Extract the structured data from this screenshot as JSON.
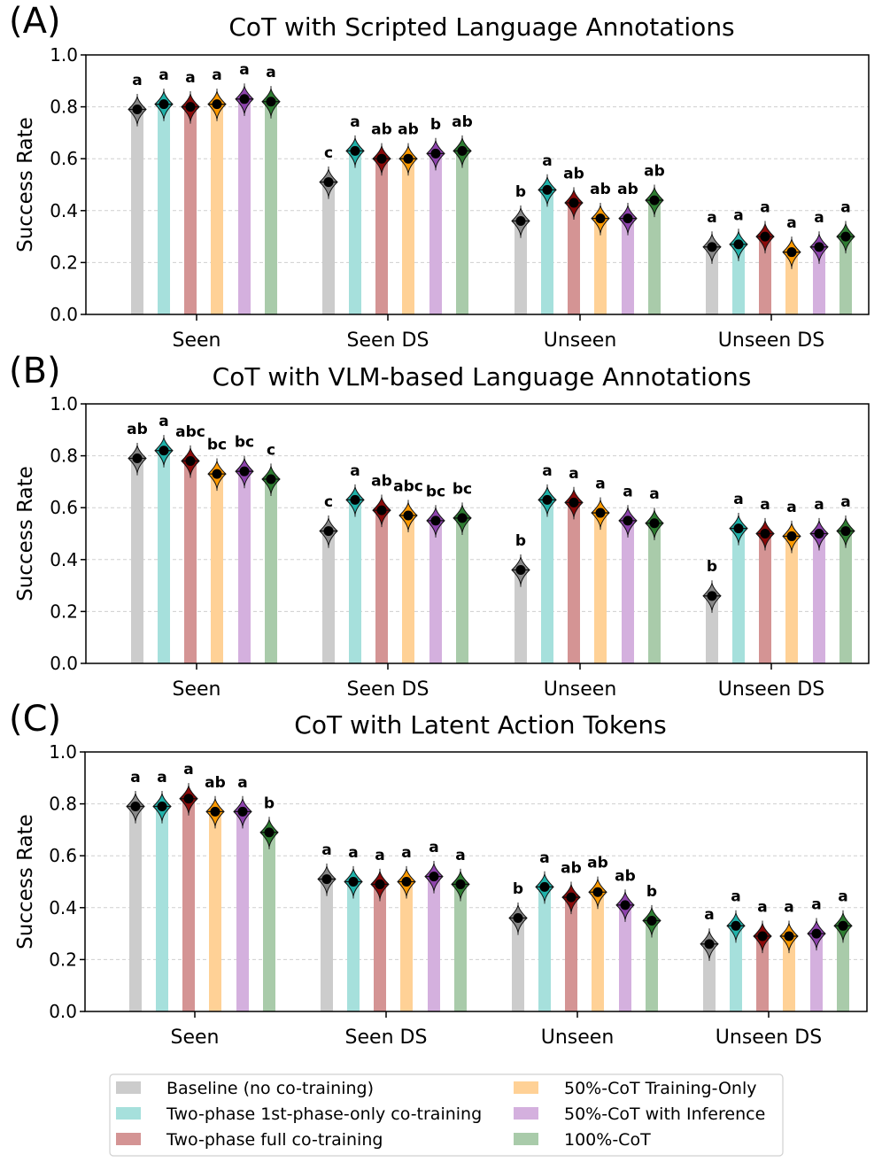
{
  "series_styles": [
    {
      "name": "Baseline (no co-training)",
      "bar_color": "#cccccc",
      "violin_color": "#888888"
    },
    {
      "name": "Two-phase 1st-phase-only co-training",
      "bar_color": "#a6e0dc",
      "violin_color": "#20b2aa"
    },
    {
      "name": "Two-phase full co-training",
      "bar_color": "#d49494",
      "violin_color": "#8b0a0a"
    },
    {
      "name": "50%-CoT Training-Only",
      "bar_color": "#ffd196",
      "violin_color": "#ff9a00"
    },
    {
      "name": "50%-CoT with Inference",
      "bar_color": "#d4b0de",
      "violin_color": "#8e44ad"
    },
    {
      "name": "100%-CoT",
      "bar_color": "#a9cbaa",
      "violin_color": "#2e7d32"
    }
  ],
  "chart_data": [
    {
      "type": "bar",
      "panel_label": "(A)",
      "title": "CoT with Scripted Language Annotations",
      "ylabel": "Success Rate",
      "ylim": [
        0,
        1
      ],
      "yticks": [
        "0.0",
        "0.2",
        "0.4",
        "0.6",
        "0.8",
        "1.0"
      ],
      "grid": true,
      "categories": [
        "Seen",
        "Seen DS",
        "Unseen",
        "Unseen DS"
      ],
      "series": [
        {
          "name": "Baseline (no co-training)",
          "values": [
            0.79,
            0.51,
            0.36,
            0.26
          ],
          "letters": [
            "a",
            "c",
            "b",
            "a"
          ]
        },
        {
          "name": "Two-phase 1st-phase-only co-training",
          "values": [
            0.81,
            0.63,
            0.48,
            0.27
          ],
          "letters": [
            "a",
            "a",
            "a",
            "a"
          ]
        },
        {
          "name": "Two-phase full co-training",
          "values": [
            0.8,
            0.6,
            0.43,
            0.3
          ],
          "letters": [
            "a",
            "ab",
            "ab",
            "a"
          ]
        },
        {
          "name": "50%-CoT Training-Only",
          "values": [
            0.81,
            0.6,
            0.37,
            0.24
          ],
          "letters": [
            "a",
            "ab",
            "ab",
            "a"
          ]
        },
        {
          "name": "50%-CoT with Inference",
          "values": [
            0.83,
            0.62,
            0.37,
            0.26
          ],
          "letters": [
            "a",
            "b",
            "ab",
            "a"
          ]
        },
        {
          "name": "100%-CoT",
          "values": [
            0.82,
            0.63,
            0.44,
            0.3
          ],
          "letters": [
            "a",
            "ab",
            "ab",
            "a"
          ]
        }
      ]
    },
    {
      "type": "bar",
      "panel_label": "(B)",
      "title": "CoT with VLM-based Language Annotations",
      "ylabel": "Success Rate",
      "ylim": [
        0,
        1
      ],
      "yticks": [
        "0.0",
        "0.2",
        "0.4",
        "0.6",
        "0.8",
        "1.0"
      ],
      "grid": true,
      "categories": [
        "Seen",
        "Seen DS",
        "Unseen",
        "Unseen DS"
      ],
      "series": [
        {
          "name": "Baseline (no co-training)",
          "values": [
            0.79,
            0.51,
            0.36,
            0.26
          ],
          "letters": [
            "ab",
            "c",
            "b",
            "b"
          ]
        },
        {
          "name": "Two-phase 1st-phase-only co-training",
          "values": [
            0.82,
            0.63,
            0.63,
            0.52
          ],
          "letters": [
            "a",
            "a",
            "a",
            "a"
          ]
        },
        {
          "name": "Two-phase full co-training",
          "values": [
            0.78,
            0.59,
            0.62,
            0.5
          ],
          "letters": [
            "abc",
            "ab",
            "a",
            "a"
          ]
        },
        {
          "name": "50%-CoT Training-Only",
          "values": [
            0.73,
            0.57,
            0.58,
            0.49
          ],
          "letters": [
            "bc",
            "abc",
            "a",
            "a"
          ]
        },
        {
          "name": "50%-CoT with Inference",
          "values": [
            0.74,
            0.55,
            0.55,
            0.5
          ],
          "letters": [
            "bc",
            "bc",
            "a",
            "a"
          ]
        },
        {
          "name": "100%-CoT",
          "values": [
            0.71,
            0.56,
            0.54,
            0.51
          ],
          "letters": [
            "c",
            "bc",
            "a",
            "a"
          ]
        }
      ]
    },
    {
      "type": "bar",
      "panel_label": "(C)",
      "title": "CoT with Latent Action Tokens",
      "ylabel": "Success Rate",
      "ylim": [
        0,
        1
      ],
      "yticks": [
        "0.0",
        "0.2",
        "0.4",
        "0.6",
        "0.8",
        "1.0"
      ],
      "grid": true,
      "categories": [
        "Seen",
        "Seen DS",
        "Unseen",
        "Unseen DS"
      ],
      "series": [
        {
          "name": "Baseline (no co-training)",
          "values": [
            0.79,
            0.51,
            0.36,
            0.26
          ],
          "letters": [
            "a",
            "a",
            "b",
            "a"
          ]
        },
        {
          "name": "Two-phase 1st-phase-only co-training",
          "values": [
            0.79,
            0.5,
            0.48,
            0.33
          ],
          "letters": [
            "a",
            "a",
            "a",
            "a"
          ]
        },
        {
          "name": "Two-phase full co-training",
          "values": [
            0.82,
            0.49,
            0.44,
            0.29
          ],
          "letters": [
            "a",
            "a",
            "ab",
            "a"
          ]
        },
        {
          "name": "50%-CoT Training-Only",
          "values": [
            0.77,
            0.5,
            0.46,
            0.29
          ],
          "letters": [
            "ab",
            "a",
            "ab",
            "a"
          ]
        },
        {
          "name": "50%-CoT with Inference",
          "values": [
            0.77,
            0.52,
            0.41,
            0.3
          ],
          "letters": [
            "a",
            "a",
            "ab",
            "a"
          ]
        },
        {
          "name": "100%-CoT",
          "values": [
            0.69,
            0.49,
            0.35,
            0.33
          ],
          "letters": [
            "b",
            "a",
            "b",
            "a"
          ]
        }
      ]
    }
  ],
  "legend": {
    "position": "bottom",
    "items": [
      "Baseline (no co-training)",
      "Two-phase 1st-phase-only co-training",
      "Two-phase full co-training",
      "50%-CoT Training-Only",
      "50%-CoT with Inference",
      "100%-CoT"
    ]
  }
}
